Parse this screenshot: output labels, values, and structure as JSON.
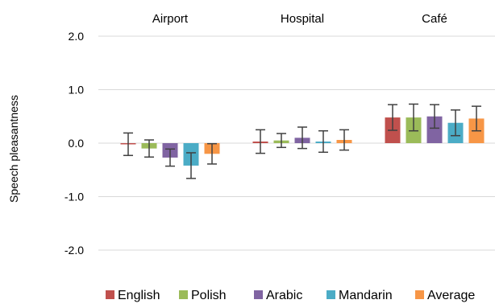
{
  "chart_data": {
    "type": "bar",
    "categories": [
      "Airport",
      "Hospital",
      "Café"
    ],
    "ylabel": "Speech pleasantness",
    "ylim": [
      -2.0,
      2.0
    ],
    "yticks": [
      "2.0",
      "1.0",
      "0.0",
      "-1.0",
      "-2.0"
    ],
    "legend_position": "bottom",
    "series": [
      {
        "name": "English",
        "color": "#c0504d",
        "values": [
          -0.02,
          0.03,
          0.48
        ],
        "err": [
          0.21,
          0.22,
          0.24
        ]
      },
      {
        "name": "Polish",
        "color": "#9bbb59",
        "values": [
          -0.1,
          0.05,
          0.48
        ],
        "err": [
          0.16,
          0.13,
          0.25
        ]
      },
      {
        "name": "Arabic",
        "color": "#8064a2",
        "values": [
          -0.27,
          0.1,
          0.5
        ],
        "err": [
          0.16,
          0.2,
          0.22
        ]
      },
      {
        "name": "Mandarin",
        "color": "#4bacc6",
        "values": [
          -0.42,
          0.03,
          0.38
        ],
        "err": [
          0.24,
          0.2,
          0.24
        ]
      },
      {
        "name": "Average",
        "color": "#f79646",
        "values": [
          -0.2,
          0.06,
          0.46
        ],
        "err": [
          0.19,
          0.19,
          0.23
        ]
      }
    ]
  }
}
